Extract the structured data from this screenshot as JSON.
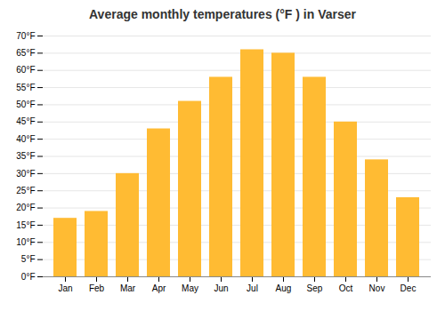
{
  "chart_data": {
    "type": "bar",
    "title": "Average monthly temperatures (°F ) in Varser",
    "categories": [
      "Jan",
      "Feb",
      "Mar",
      "Apr",
      "May",
      "Jun",
      "Jul",
      "Aug",
      "Sep",
      "Oct",
      "Nov",
      "Dec"
    ],
    "values": [
      17,
      19,
      30,
      43,
      51,
      58,
      66,
      65,
      58,
      45,
      34,
      23
    ],
    "color": "#FFBB33",
    "ylim": [
      0,
      70
    ],
    "yticks": [
      {
        "value": 0,
        "label": "0°F"
      },
      {
        "value": 5,
        "label": "5°F"
      },
      {
        "value": 10,
        "label": "10°F"
      },
      {
        "value": 15,
        "label": "15°F"
      },
      {
        "value": 20,
        "label": "20°F"
      },
      {
        "value": 25,
        "label": "25°F"
      },
      {
        "value": 30,
        "label": "30°F"
      },
      {
        "value": 35,
        "label": "35°F"
      },
      {
        "value": 40,
        "label": "40°F"
      },
      {
        "value": 45,
        "label": "45°F"
      },
      {
        "value": 50,
        "label": "50°F"
      },
      {
        "value": 55,
        "label": "55°F"
      },
      {
        "value": 60,
        "label": "60°F"
      },
      {
        "value": 65,
        "label": "65°F"
      },
      {
        "value": 70,
        "label": "70°F"
      }
    ],
    "grid": true
  }
}
